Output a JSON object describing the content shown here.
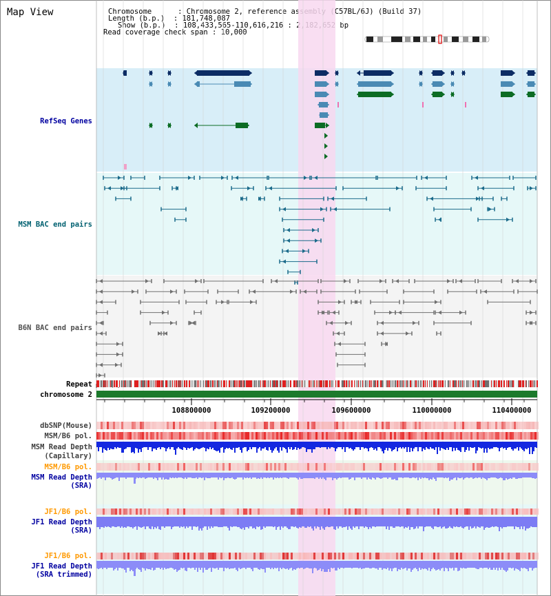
{
  "page_title": "Map View",
  "info": {
    "line1": "Chromosome      : Chromosome 2, reference assembly (C57BL/6J) (Build 37)",
    "line2": "Length (b.p.)  : 181,748,087",
    "line3": "Show (b.p.)  : 108,433,565-110,616,216 : 2,182,652 bp",
    "line4": "Read coverage check span : 10,000"
  },
  "tracks": {
    "refseq": "RefSeq Genes",
    "msm_bac": "MSM BAC end pairs",
    "b6n_bac": "B6N BAC end pairs",
    "repeat": "Repeat",
    "chromosome": "chromosome 2",
    "dbsnp": "dbSNP(Mouse)",
    "msm_b6_pol": "MSM/B6 pol.",
    "msm_depth_cap_1": "MSM Read Depth",
    "msm_depth_cap_2": "(Capillary)",
    "msm_b6_pol_sra": "MSM/B6 pol.",
    "msm_depth_sra_1": "MSM Read Depth",
    "msm_depth_sra_2": "(SRA)",
    "jf1_b6_pol": "JF1/B6 pol.",
    "jf1_depth_1": "JF1 Read Depth",
    "jf1_depth_2": "(SRA)",
    "jf1_b6_pol_2": "JF1/B6 pol.",
    "jf1_trim_1": "JF1 Read Depth",
    "jf1_trim_2": "(SRA trimmed)"
  },
  "ruler": [
    "108800000",
    "109200000",
    "109600000",
    "110000000",
    "110400000"
  ],
  "colors": {
    "highlight": "#f8d8f0",
    "refseq_bg": "#d8eef8",
    "msm_bg": "#e6f8f8",
    "b6n_bg": "#f4f4f4",
    "navy": "#0c2c64",
    "steel": "#4a8ab4",
    "green": "#0c6c24",
    "chrom_green": "#1c7a2c",
    "msm_label": "#006070",
    "b6n_label": "#505050",
    "orange_label": "#ff9900",
    "blue_label": "#0000a0",
    "depth_dark": "#1020e0",
    "depth_light": "#8888f8"
  }
}
